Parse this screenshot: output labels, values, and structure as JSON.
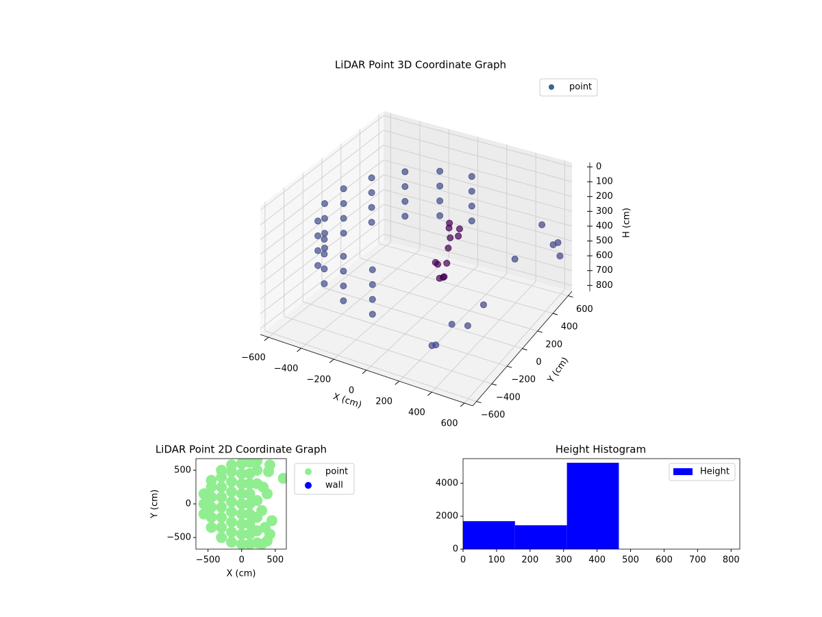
{
  "chart_data": [
    {
      "type": "scatter3d",
      "title": "LiDAR Point 3D Coordinate Graph",
      "xlabel": "X (cm)",
      "ylabel": "Y (cm)",
      "zlabel": "H (cm)",
      "xlim": [
        -650,
        650
      ],
      "ylim": [
        -650,
        650
      ],
      "zlim": [
        840,
        -30
      ],
      "xticks": [
        {
          "value": -600,
          "label": "−600"
        },
        {
          "value": -400,
          "label": "−400"
        },
        {
          "value": -200,
          "label": "−200"
        },
        0,
        200,
        400,
        600
      ],
      "yticks": [
        {
          "value": -600,
          "label": "−600"
        },
        {
          "value": -400,
          "label": "−400"
        },
        {
          "value": -200,
          "label": "−200"
        },
        0,
        200,
        400,
        600
      ],
      "zticks": [
        0,
        100,
        200,
        300,
        400,
        500,
        600,
        700,
        800
      ],
      "grid": true,
      "legend": "upper right",
      "series": [
        {
          "name": "point",
          "color": "#31688e",
          "x": [
            0,
            0,
            0,
            0,
            -198,
            -198,
            -198,
            -198,
            -373,
            -373,
            -373,
            -373,
            -502,
            -502,
            -502,
            -502,
            -571,
            -571,
            -571,
            -571,
            -571,
            -571,
            -571,
            -571,
            -502,
            -502,
            -502,
            -502,
            -373,
            -373,
            -373,
            -373,
            -198,
            -198,
            -198,
            -198,
            0,
            0,
            0,
            0,
            150,
            120,
            180,
            100,
            160,
            130,
            200,
            90,
            170,
            140,
            110,
            190,
            350,
            400,
            300,
            250,
            450,
            500,
            550,
            600,
            620,
            580
          ],
          "y": [
            580,
            580,
            580,
            580,
            545,
            545,
            545,
            545,
            444,
            444,
            444,
            444,
            290,
            290,
            290,
            290,
            101,
            101,
            101,
            101,
            -101,
            -101,
            -101,
            -101,
            -290,
            -290,
            -290,
            -290,
            -444,
            -444,
            -444,
            -444,
            -545,
            -545,
            -545,
            -545,
            -580,
            -580,
            -580,
            -580,
            50,
            100,
            -20,
            150,
            0,
            -80,
            80,
            20,
            120,
            -50,
            60,
            -100,
            -300,
            -200,
            -400,
            -350,
            -100,
            200,
            450,
            500,
            550,
            600
          ],
          "z": [
            200,
            300,
            400,
            500,
            200,
            300,
            400,
            500,
            200,
            300,
            400,
            500,
            200,
            300,
            400,
            500,
            200,
            300,
            400,
            500,
            200,
            300,
            400,
            500,
            200,
            300,
            400,
            500,
            200,
            300,
            400,
            500,
            200,
            300,
            400,
            500,
            200,
            300,
            400,
            500,
            180,
            250,
            300,
            350,
            420,
            380,
            220,
            460,
            300,
            500,
            560,
            450,
            600,
            650,
            700,
            750,
            550,
            400,
            300,
            450,
            550,
            500
          ],
          "colors": [
            "#3e4a89",
            "#3e4a89",
            "#3e4a89",
            "#3e4a89",
            "#3e4a89",
            "#3e4a89",
            "#3e4a89",
            "#3e4a89",
            "#3e4a89",
            "#3e4a89",
            "#3e4a89",
            "#3e4a89",
            "#3e4a89",
            "#3e4a89",
            "#3e4a89",
            "#3e4a89",
            "#3e4a89",
            "#3e4a89",
            "#3e4a89",
            "#3e4a89",
            "#3e4a89",
            "#3e4a89",
            "#3e4a89",
            "#3e4a89",
            "#3e4a89",
            "#3e4a89",
            "#3e4a89",
            "#3e4a89",
            "#3e4a89",
            "#3e4a89",
            "#3e4a89",
            "#3e4a89",
            "#3e4a89",
            "#3e4a89",
            "#3e4a89",
            "#3e4a89",
            "#3e4a89",
            "#3e4a89",
            "#3e4a89",
            "#3e4a89",
            "#440154",
            "#440154",
            "#440154",
            "#440154",
            "#440154",
            "#440154",
            "#440154",
            "#440154",
            "#440154",
            "#440154",
            "#440154",
            "#440154",
            "#414487",
            "#414487",
            "#414487",
            "#414487",
            "#414487",
            "#414487",
            "#414487",
            "#414487",
            "#414487",
            "#414487"
          ]
        }
      ]
    },
    {
      "type": "scatter",
      "title": "LiDAR Point 2D Coordinate Graph",
      "xlabel": "X (cm)",
      "ylabel": "Y (cm)",
      "xlim": [
        -680,
        665
      ],
      "ylim": [
        -673,
        673
      ],
      "xticks": [
        {
          "value": -500,
          "label": "−500"
        },
        0,
        500
      ],
      "yticks": [
        {
          "value": -500,
          "label": "−500"
        },
        0,
        500
      ],
      "legend": "outside upper right",
      "series": [
        {
          "name": "point",
          "color": "#90ee90",
          "x": [
            -560,
            -560,
            -560,
            -450,
            -450,
            -450,
            -450,
            -450,
            -450,
            -300,
            -300,
            -300,
            -300,
            -300,
            -300,
            -300,
            -300,
            -150,
            -150,
            -150,
            -150,
            -150,
            -150,
            -150,
            -150,
            -150,
            0,
            0,
            0,
            0,
            0,
            0,
            0,
            0,
            0,
            120,
            120,
            120,
            120,
            120,
            120,
            120,
            120,
            120,
            230,
            230,
            230,
            230,
            230,
            230,
            230,
            300,
            380,
            420,
            350,
            450,
            300,
            380,
            320,
            400,
            420,
            620
          ],
          "values": [
            -150,
            0,
            150,
            -350,
            -200,
            -50,
            100,
            250,
            350,
            -500,
            -350,
            -200,
            -50,
            100,
            250,
            400,
            500,
            -570,
            -420,
            -270,
            -120,
            30,
            180,
            330,
            480,
            580,
            -600,
            -450,
            -300,
            -150,
            0,
            150,
            300,
            450,
            600,
            -600,
            -450,
            -300,
            -150,
            0,
            150,
            300,
            450,
            620,
            -580,
            -400,
            -200,
            50,
            300,
            500,
            640,
            -600,
            -550,
            -450,
            -350,
            -250,
            -100,
            150,
            250,
            480,
            580,
            380
          ]
        },
        {
          "name": "wall",
          "color": "#0000ff",
          "x": [],
          "values": []
        }
      ]
    },
    {
      "type": "histogram",
      "title": "Height Histogram",
      "xlim": [
        0,
        826
      ],
      "ylim": [
        0,
        5500
      ],
      "xticks": [
        0,
        100,
        200,
        300,
        400,
        500,
        600,
        700,
        800
      ],
      "yticks": [
        0,
        2000,
        4000
      ],
      "legend": "upper right",
      "series": [
        {
          "name": "Height",
          "color": "#0000ff",
          "bins": [
            0,
            155,
            310,
            465,
            620,
            775
          ],
          "counts": [
            1700,
            1450,
            5250,
            0,
            0
          ]
        }
      ]
    }
  ]
}
